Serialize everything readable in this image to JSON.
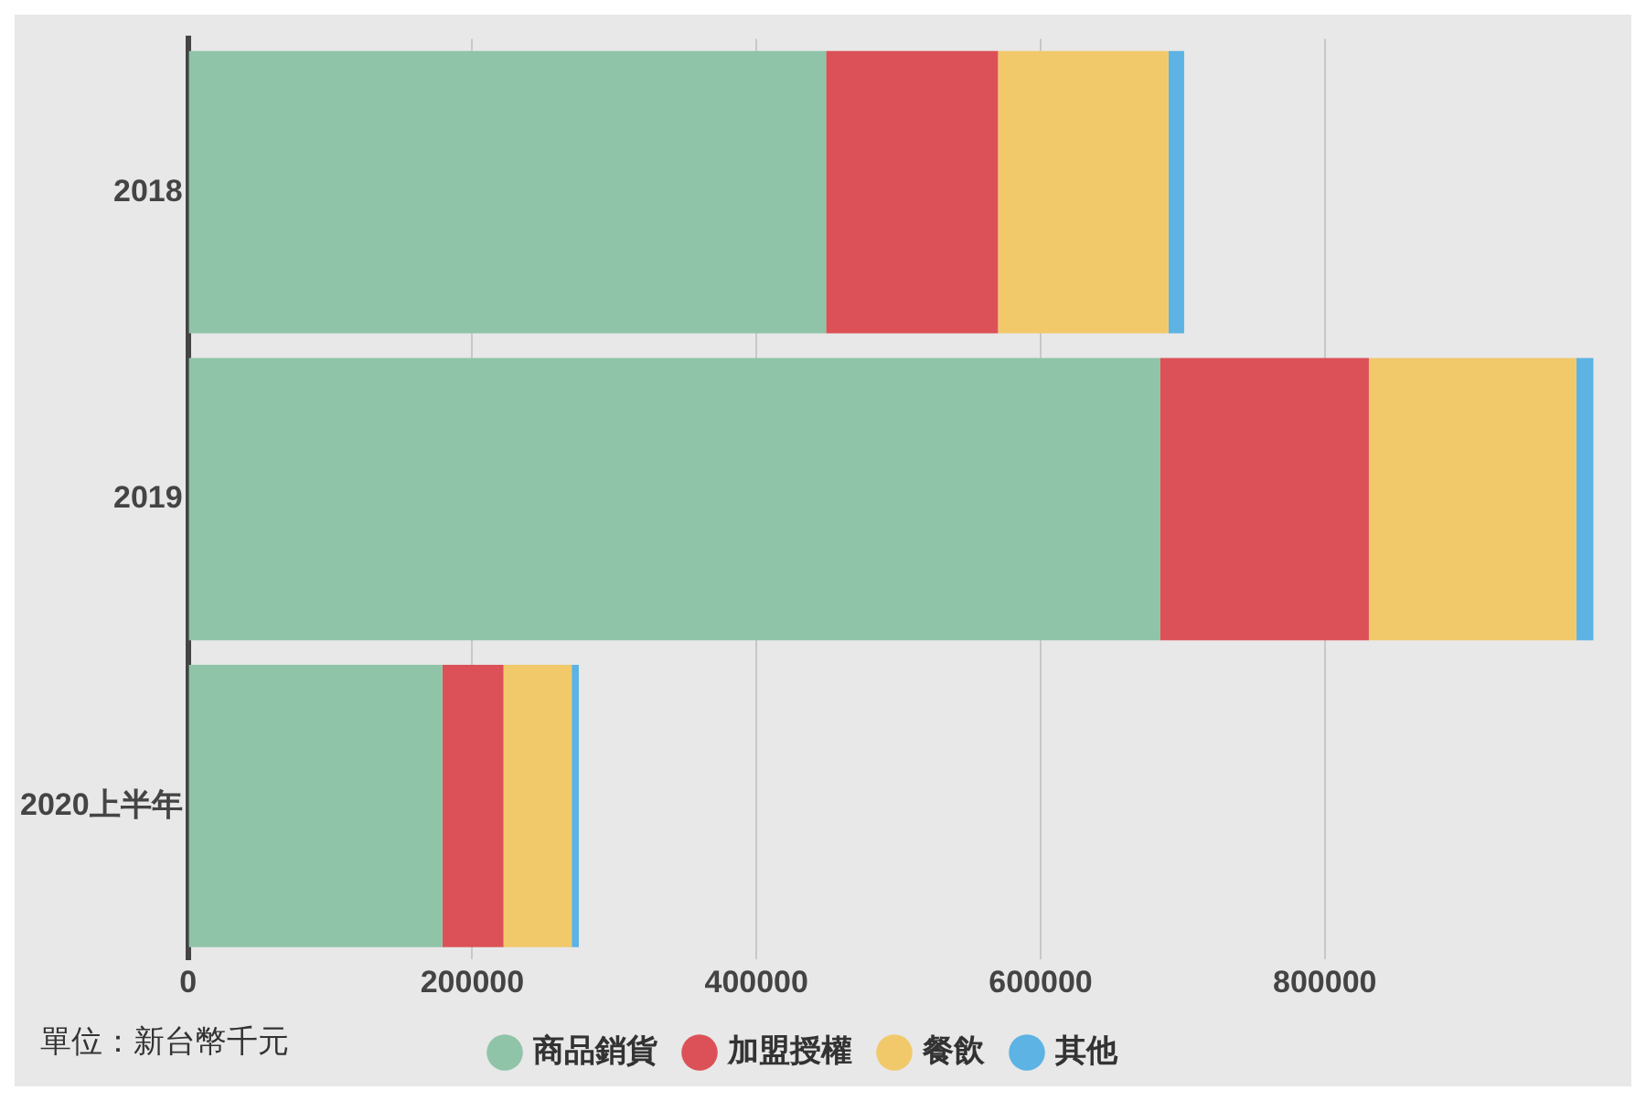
{
  "chart_data": {
    "type": "bar",
    "orientation": "horizontal",
    "stacked": true,
    "categories": [
      "2018",
      "2019",
      "2020上半年"
    ],
    "series": [
      {
        "name": "商品銷貨",
        "color": "#8fc4a8",
        "values": [
          449000,
          684000,
          179000
        ]
      },
      {
        "name": "加盟授權",
        "color": "#dc5157",
        "values": [
          121000,
          147000,
          43000
        ]
      },
      {
        "name": "餐飲",
        "color": "#f1c96b",
        "values": [
          120000,
          146000,
          48000
        ]
      },
      {
        "name": "其他",
        "color": "#5cb3e4",
        "values": [
          11000,
          12000,
          5000
        ]
      }
    ],
    "xlim": [
      0,
      990000
    ],
    "xticks": [
      0,
      200000,
      400000,
      600000,
      800000
    ],
    "grid": "x",
    "legend": "bottom left",
    "legend_title": "單位：新台幣千元"
  }
}
